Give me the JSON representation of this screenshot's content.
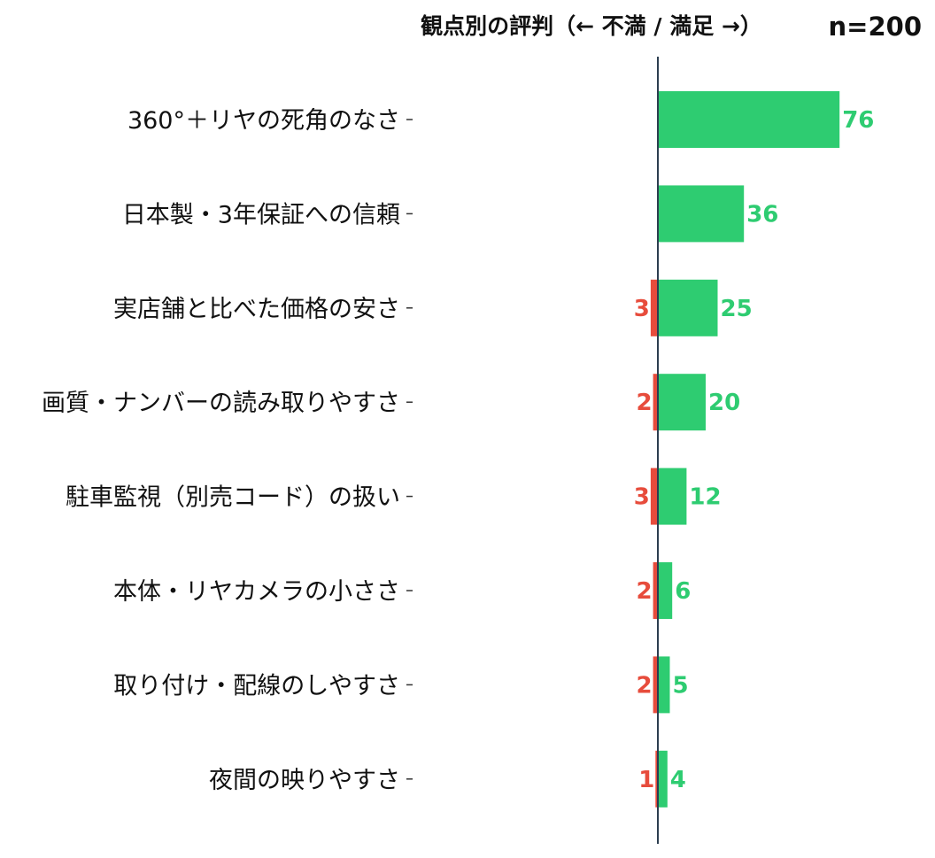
{
  "chart_data": {
    "type": "bar",
    "orientation": "horizontal",
    "stacking": "diverging",
    "title": "観点別の評判（← 不満 / 満足 →）",
    "sample_size_label": "n=200",
    "categories": [
      "360°＋リヤの死角のなさ",
      "日本製・3年保証への信頼",
      "実店舗と比べた価格の安さ",
      "画質・ナンバーの読み取りやすさ",
      "駐車監視（別売コード）の扱い",
      "本体・リヤカメラの小ささ",
      "取り付け・配線のしやすさ",
      "夜間の映りやすさ"
    ],
    "series": [
      {
        "key": "negative",
        "direction": "left",
        "color": "#e74c3c",
        "values": [
          0,
          0,
          3,
          2,
          3,
          2,
          2,
          1
        ]
      },
      {
        "key": "positive",
        "direction": "right",
        "color": "#2ecc71",
        "values": [
          76,
          36,
          25,
          20,
          12,
          6,
          5,
          4
        ]
      }
    ],
    "axis_color": "#2c3e50",
    "show_zero_labels": false,
    "grid": false,
    "legend": "none"
  }
}
